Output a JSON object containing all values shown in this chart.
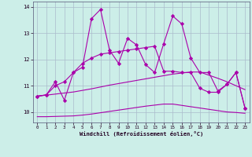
{
  "xlabel": "Windchill (Refroidissement éolien,°C)",
  "background_color": "#cceee8",
  "grid_color": "#aabbcc",
  "line_color": "#aa00aa",
  "x": [
    0,
    1,
    2,
    3,
    4,
    5,
    6,
    7,
    8,
    9,
    10,
    11,
    12,
    13,
    14,
    15,
    16,
    17,
    18,
    19,
    20,
    21,
    22,
    23
  ],
  "line1": [
    10.6,
    10.65,
    11.0,
    11.15,
    11.5,
    11.7,
    13.55,
    13.9,
    12.35,
    11.85,
    12.8,
    12.55,
    11.8,
    11.5,
    12.6,
    13.65,
    13.35,
    12.05,
    11.5,
    11.5,
    10.8,
    11.05,
    11.5,
    10.15
  ],
  "line2": [
    10.6,
    10.65,
    11.15,
    10.45,
    11.5,
    11.85,
    12.05,
    12.2,
    12.25,
    12.3,
    12.35,
    12.4,
    12.45,
    12.5,
    11.55,
    11.55,
    11.5,
    11.5,
    10.9,
    10.75,
    10.75,
    11.05,
    11.5,
    10.15
  ],
  "line3": [
    10.6,
    10.64,
    10.68,
    10.72,
    10.76,
    10.82,
    10.88,
    10.95,
    11.02,
    11.08,
    11.14,
    11.2,
    11.26,
    11.32,
    11.38,
    11.44,
    11.48,
    11.52,
    11.52,
    11.4,
    11.28,
    11.15,
    11.0,
    10.85
  ],
  "line4": [
    9.82,
    9.82,
    9.83,
    9.84,
    9.85,
    9.88,
    9.92,
    9.97,
    10.02,
    10.07,
    10.12,
    10.17,
    10.22,
    10.26,
    10.3,
    10.3,
    10.25,
    10.2,
    10.15,
    10.1,
    10.05,
    10.0,
    9.98,
    9.95
  ],
  "ylim": [
    9.6,
    14.2
  ],
  "yticks": [
    10,
    11,
    12,
    13,
    14
  ],
  "xticks": [
    0,
    1,
    2,
    3,
    4,
    5,
    6,
    7,
    8,
    9,
    10,
    11,
    12,
    13,
    14,
    15,
    16,
    17,
    18,
    19,
    20,
    21,
    22,
    23
  ]
}
